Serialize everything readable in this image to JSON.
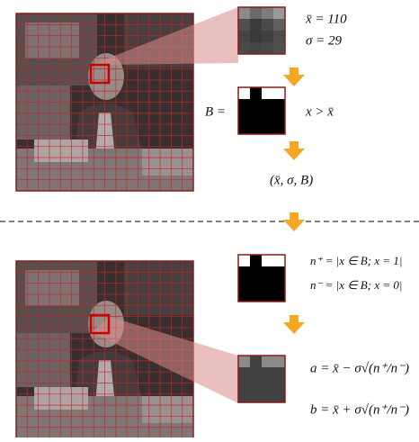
{
  "top": {
    "mean": "x̄ = 110",
    "std": "σ = 29",
    "bitmap_label": "B =",
    "threshold": "x > x̄",
    "output": "(x̄, σ, B)"
  },
  "bottom": {
    "n_plus": "n⁺ = |x ∈ B; x = 1|",
    "n_minus": "n⁻ = |x ∈ B; x = 0|",
    "a": "a = x̄ − σ√(n⁺/n⁻)",
    "b": "b = x̄ + σ√(n⁺/n⁻)"
  }
}
